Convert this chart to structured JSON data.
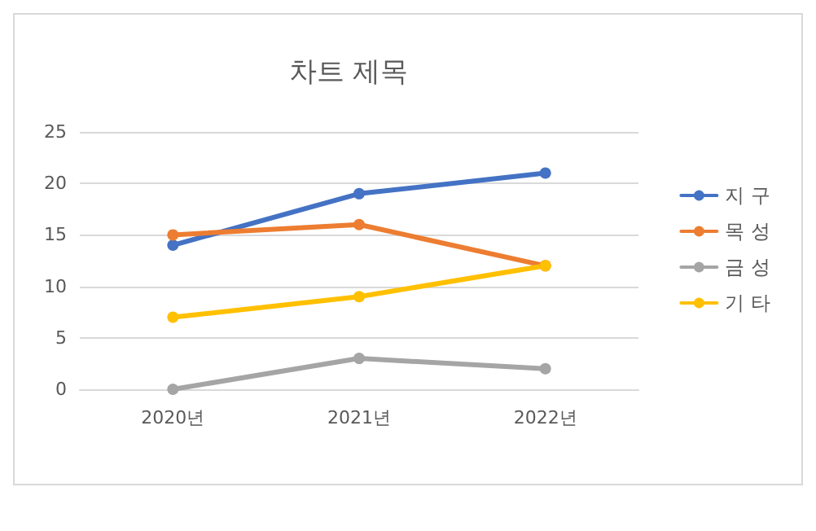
{
  "chart_data": {
    "type": "line",
    "title": "차트 제목",
    "categories": [
      "2020년",
      "2021년",
      "2022년"
    ],
    "series": [
      {
        "name": "지 구",
        "color": "#4472c4",
        "values": [
          14,
          19,
          21
        ]
      },
      {
        "name": "목 성",
        "color": "#ed7d31",
        "values": [
          15,
          16,
          12
        ]
      },
      {
        "name": "금 성",
        "color": "#a5a5a5",
        "values": [
          0,
          3,
          2
        ]
      },
      {
        "name": "기 타",
        "color": "#ffc000",
        "values": [
          7,
          9,
          12
        ]
      }
    ],
    "ylim": [
      0,
      25
    ],
    "yticks": [
      0,
      5,
      10,
      15,
      20,
      25
    ],
    "grid": "y",
    "legend": "right",
    "marker": "circle",
    "line_style": "solid"
  }
}
